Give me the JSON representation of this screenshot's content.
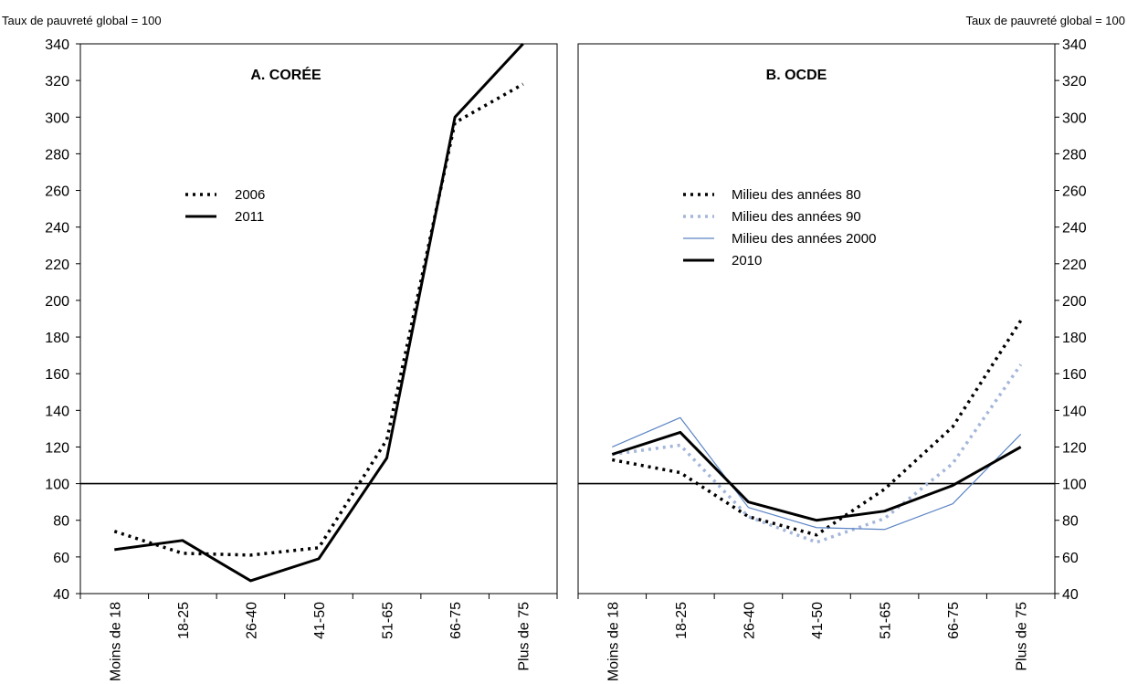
{
  "chart_data": [
    {
      "type": "line",
      "title": "A. CORÉE",
      "ylabel": "Taux de pauvreté global = 100",
      "categories": [
        "Moins de 18",
        "18-25",
        "26-40",
        "41-50",
        "51-65",
        "66-75",
        "Plus de 75"
      ],
      "ylim": [
        40,
        340
      ],
      "yticks": [
        40,
        60,
        80,
        100,
        120,
        140,
        160,
        180,
        200,
        220,
        240,
        260,
        280,
        300,
        320,
        340
      ],
      "reference_line": 100,
      "legend_position": "upper-left",
      "series": [
        {
          "name": "2006",
          "values": [
            74,
            62,
            61,
            65,
            124,
            297,
            318
          ],
          "color": "#000000",
          "style": "dotted"
        },
        {
          "name": "2011",
          "values": [
            64,
            69,
            47,
            59,
            114,
            300,
            340
          ],
          "color": "#000000",
          "style": "solid"
        }
      ]
    },
    {
      "type": "line",
      "title": "B. OCDE",
      "ylabel": "Taux de pauvreté global = 100",
      "categories": [
        "Moins de 18",
        "18-25",
        "26-40",
        "41-50",
        "51-65",
        "66-75",
        "Plus de 75"
      ],
      "ylim": [
        40,
        340
      ],
      "yticks": [
        40,
        60,
        80,
        100,
        120,
        140,
        160,
        180,
        200,
        220,
        240,
        260,
        280,
        300,
        320,
        340
      ],
      "reference_line": 100,
      "legend_position": "upper-left",
      "series": [
        {
          "name": "Milieu des années 80",
          "values": [
            113,
            106,
            82,
            72,
            97,
            131,
            189
          ],
          "color": "#000000",
          "style": "dotted"
        },
        {
          "name": "Milieu des années 90",
          "values": [
            116,
            121,
            82,
            68,
            81,
            111,
            165
          ],
          "color": "#a4b6d9",
          "style": "dotted"
        },
        {
          "name": "Milieu des années 2000",
          "values": [
            120,
            136,
            87,
            76,
            75,
            89,
            127
          ],
          "color": "#5b84c4",
          "style": "thin"
        },
        {
          "name": "2010",
          "values": [
            116,
            128,
            90,
            80,
            85,
            99,
            120
          ],
          "color": "#000000",
          "style": "solid"
        }
      ]
    }
  ]
}
